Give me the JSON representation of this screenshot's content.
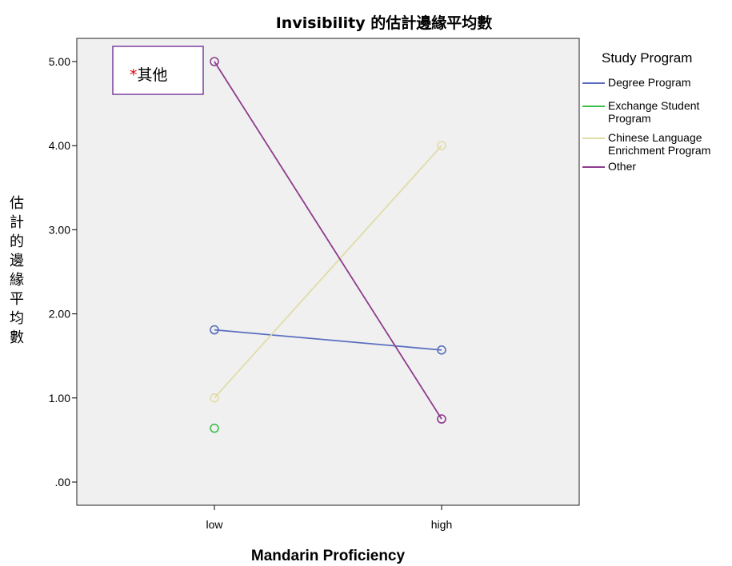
{
  "chart_data": {
    "type": "line",
    "title": "Invisibility 的估計邊緣平均數",
    "xlabel": "Mandarin Proficiency",
    "ylabel": "估計的邊緣平均數",
    "categories": [
      "low",
      "high"
    ],
    "ylim": [
      -0.05,
      5.6
    ],
    "yticks": [
      0,
      1,
      2,
      3,
      4,
      5
    ],
    "ytick_labels": [
      ".00",
      "1.00",
      "2.00",
      "3.00",
      "4.00",
      "5.00"
    ],
    "grid": false,
    "legend": {
      "title": "Study Program",
      "placement": "right"
    },
    "series": [
      {
        "name": "Degree Program",
        "color": "#5b6fbf",
        "values": [
          1.81,
          1.57
        ]
      },
      {
        "name": "Exchange Student Program",
        "color": "#3cbf4a",
        "values": [
          0.64,
          null
        ]
      },
      {
        "name": "Chinese Language Enrichment Program",
        "color": "#e0dca8",
        "values": [
          1.0,
          4.0
        ]
      },
      {
        "name": "Other",
        "color": "#8e3c8e",
        "values": [
          5.0,
          0.75
        ]
      }
    ],
    "annotation": {
      "star": "*",
      "text": "其他",
      "border_color": "#7b3f9e"
    }
  },
  "colors": {
    "plot_background": "#f0f0f0",
    "axis": "#000000"
  }
}
